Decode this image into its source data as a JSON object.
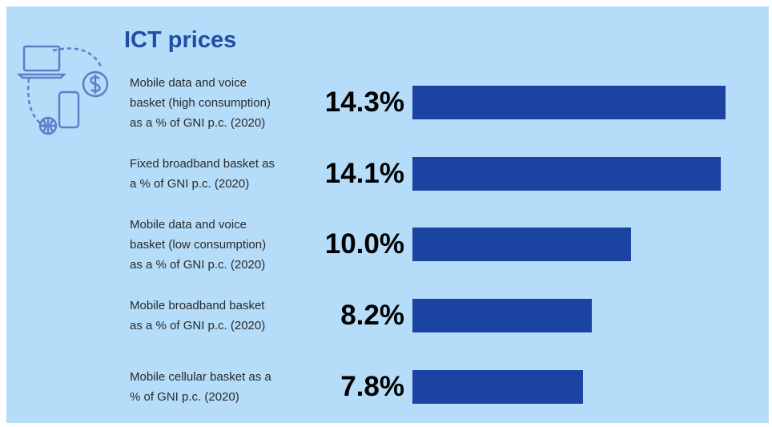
{
  "chart_data": {
    "type": "bar",
    "orientation": "horizontal",
    "title": "ICT prices",
    "categories": [
      "Mobile data and voice\nbasket (high consumption)\nas a % of GNI p.c. (2020)",
      "Fixed broadband basket as\na % of GNI p.c. (2020)",
      "Mobile data and voice\nbasket (low consumption)\nas a % of GNI p.c. (2020)",
      "Mobile broadband basket\nas a % of GNI p.c. (2020)",
      "Mobile cellular basket as a\n% of GNI p.c. (2020)"
    ],
    "values": [
      14.3,
      14.1,
      10.0,
      8.2,
      7.8
    ],
    "value_labels": [
      "14.3%",
      "14.1%",
      "10.0%",
      "8.2%",
      "7.8%"
    ],
    "color": "#1b43a1"
  }
}
